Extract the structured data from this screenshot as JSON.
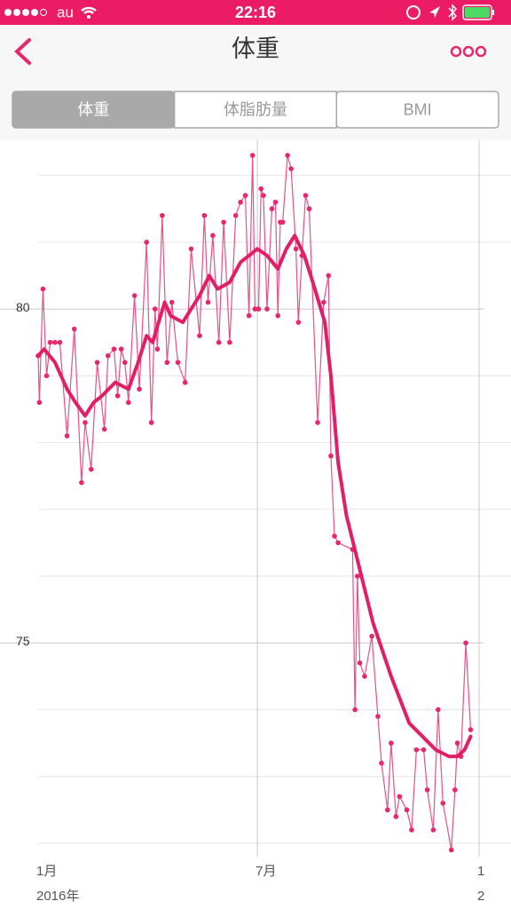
{
  "status_bar": {
    "carrier": "au",
    "time": "22:16"
  },
  "nav": {
    "title": "体重"
  },
  "segments": [
    "体重",
    "体脂肪量",
    "BMI"
  ],
  "selected_segment": 0,
  "chart_data": {
    "type": "line",
    "color": "#e8266e",
    "xlim": [
      0,
      366
    ],
    "xticks": [
      {
        "value": 0,
        "label": "1月"
      },
      {
        "value": 182,
        "label": "7月"
      },
      {
        "value": 366,
        "label": "1"
      }
    ],
    "year_labels": [
      {
        "value": 0,
        "label": "2016年"
      },
      {
        "value": 366,
        "label": "2"
      }
    ],
    "xgrid": [
      182,
      366
    ],
    "ylim": [
      71.8,
      82.5
    ],
    "yticks": [
      75,
      80
    ],
    "minor_gridlines": [
      72,
      73,
      74,
      76,
      77,
      78,
      79,
      81,
      82
    ],
    "series": [
      {
        "color": "#ea4f86",
        "marker": true,
        "x": [
          0,
          1,
          4,
          7,
          10,
          14,
          18,
          24,
          30,
          36,
          39,
          44,
          49,
          55,
          58,
          63,
          66,
          69,
          72,
          75,
          80,
          84,
          90,
          94,
          97,
          99,
          103,
          107,
          111,
          116,
          122,
          127,
          134,
          138,
          141,
          145,
          150,
          154,
          159,
          164,
          168,
          172,
          175,
          178,
          180,
          183,
          185,
          187,
          190,
          194,
          197,
          199,
          201,
          203,
          207,
          210,
          214,
          216,
          219,
          222,
          225,
          232,
          237,
          241,
          243,
          246,
          249,
          261,
          263,
          265,
          267,
          271,
          277,
          282,
          285,
          290,
          293,
          297,
          300,
          306,
          310,
          314,
          320,
          323,
          328,
          332,
          336,
          343,
          346,
          348,
          351,
          355,
          359
        ],
        "values": [
          79.3,
          78.6,
          80.3,
          79.0,
          79.5,
          79.5,
          79.5,
          78.1,
          79.7,
          77.4,
          78.3,
          77.6,
          79.2,
          78.2,
          79.3,
          79.4,
          78.7,
          79.4,
          79.2,
          78.6,
          80.2,
          78.8,
          81.0,
          78.3,
          80.0,
          79.4,
          81.4,
          79.2,
          80.1,
          79.2,
          78.9,
          80.9,
          79.6,
          81.4,
          80.1,
          81.1,
          79.5,
          81.3,
          79.5,
          81.4,
          81.6,
          81.7,
          79.9,
          82.3,
          80.0,
          80.0,
          81.8,
          81.7,
          80.0,
          81.5,
          81.6,
          79.9,
          81.3,
          81.3,
          82.3,
          82.1,
          80.9,
          79.8,
          80.8,
          81.7,
          81.5,
          78.3,
          80.1,
          80.5,
          77.8,
          76.6,
          76.5,
          76.4,
          74.0,
          76.0,
          74.7,
          74.5,
          75.1,
          73.9,
          73.2,
          72.5,
          73.5,
          72.4,
          72.7,
          72.5,
          72.2,
          73.4,
          73.4,
          72.8,
          72.2,
          74.0,
          72.6,
          71.9,
          72.8,
          73.5,
          73.3,
          75.0,
          73.7
        ]
      },
      {
        "color": "#e21f66",
        "marker": false,
        "x": [
          0,
          5,
          14,
          24,
          31,
          39,
          46,
          53,
          64,
          75,
          83,
          90,
          95,
          105,
          110,
          120,
          127,
          134,
          142,
          149,
          159,
          168,
          175,
          182,
          190,
          199,
          206,
          213,
          221,
          228,
          238,
          243,
          249,
          256,
          267,
          278,
          293,
          308,
          319,
          330,
          341,
          348,
          354,
          359
        ],
        "values": [
          79.3,
          79.4,
          79.2,
          78.8,
          78.6,
          78.4,
          78.6,
          78.7,
          78.9,
          78.8,
          79.2,
          79.6,
          79.5,
          80.1,
          79.9,
          79.8,
          80.0,
          80.2,
          80.5,
          80.3,
          80.4,
          80.7,
          80.8,
          80.9,
          80.8,
          80.6,
          80.9,
          81.1,
          80.8,
          80.4,
          79.8,
          79.0,
          77.7,
          76.9,
          76.1,
          75.3,
          74.5,
          73.8,
          73.6,
          73.4,
          73.3,
          73.3,
          73.4,
          73.6
        ]
      }
    ]
  }
}
